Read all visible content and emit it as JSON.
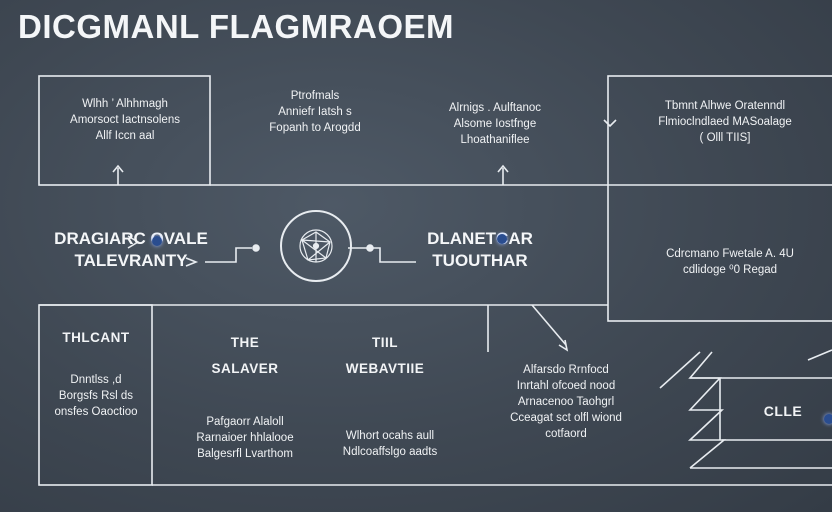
{
  "title": "DICGMANL FLAGMRAOEM",
  "boxes": {
    "top1": [
      "Wlhh ’ Alhhmagh",
      "Amorsoct Iactnsolens",
      "Allf Iccn aal"
    ],
    "top2": [
      "Ptrofmals",
      "Anniefr Iatsh s",
      "Fopanh to Arogdd"
    ],
    "top3": [
      "Alrnigs . Aulftanoc",
      "Alsome Iostfnge",
      "Lhoathaniflee"
    ],
    "top4": [
      "Tbmnt Alhwe Oratenndl",
      "Flmioclndlaed MASoalage",
      "( Olll TIIS]"
    ],
    "right_mid": [
      "Cdrcmano Fwetale A. 4U",
      "cdlidoge ⁰0 Regad"
    ],
    "left_mid": [
      "DRAGIARC OVALE",
      "TALEVRANTY"
    ],
    "center_mid": [
      "DLANETCAR",
      "TUOUTHAR"
    ],
    "bottom1": [
      "THLCANT",
      "Dnntlss ,d",
      "Borgsfs Rsl ds",
      "onsfes Oaoctioo"
    ],
    "bottom2_head": [
      "THE",
      "SALAVER"
    ],
    "bottom2_text": [
      "Pafgaorr Alaloll",
      "Rarnaioer hhlalooe",
      "Balgesrfl Lvarthom"
    ],
    "bottom3_head": [
      "TIIL",
      "WEBAVTIIE"
    ],
    "bottom3_text": [
      "Wlhort ocahs aull",
      "Ndlcoaffslgo aadts"
    ],
    "bottom4": [
      "Alfarsdo Rrnfocd",
      "Inrtahl ofcoed nood",
      "Arnacenoo Taohgrl",
      "Cceagat sct olfl wiond",
      "cotfaord"
    ],
    "cle": "CLLE"
  },
  "colors": {
    "line": "#e8ecf0",
    "accent": "#2a4d8f"
  },
  "icons": [
    "network-globe-icon",
    "orb-icon"
  ]
}
